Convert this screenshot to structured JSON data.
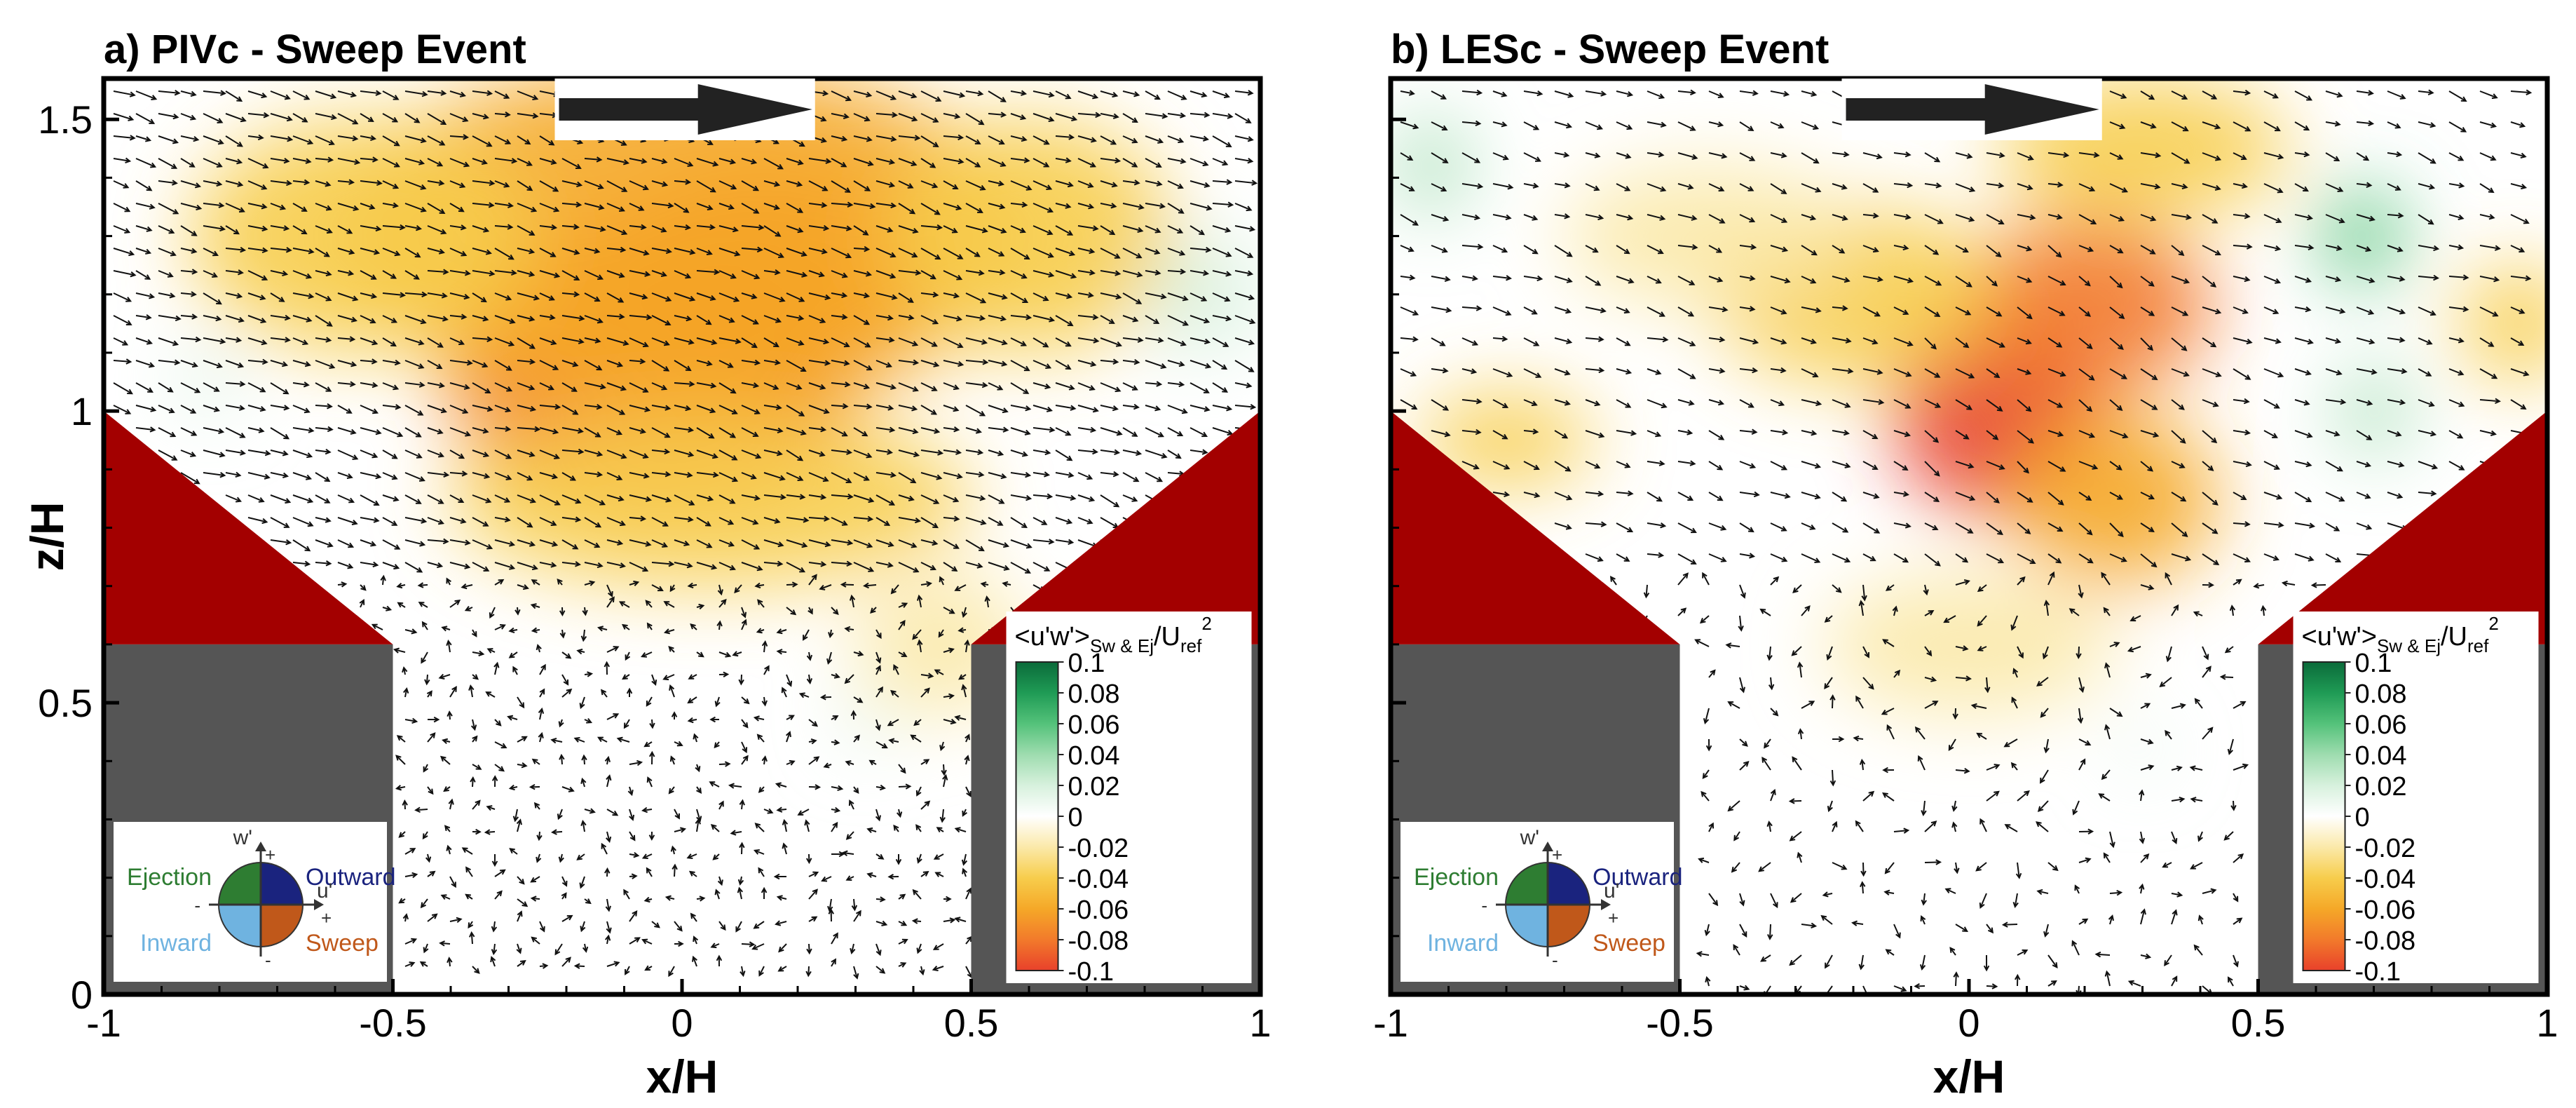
{
  "colors": {
    "roof": "#a30000",
    "building": "#555555",
    "frame": "#000000",
    "arrow": "#222222",
    "colormap": [
      "#e8412b",
      "#f27a2b",
      "#f5a828",
      "#f7cd4c",
      "#fbe9a9",
      "#ffffff",
      "#d7f1dd",
      "#9edcaf",
      "#54c27a",
      "#1f9b55",
      "#0b6b3a"
    ],
    "quadrants": {
      "ejection": "#2e7d32",
      "outward": "#1a237e",
      "inward": "#6fb3e0",
      "sweep": "#c0581a"
    }
  },
  "chart_data": [
    {
      "type": "heatmap",
      "title": "a) PIVc - Sweep Event",
      "xlabel": "x/H",
      "ylabel": "z/H",
      "xlim": [
        -1,
        1
      ],
      "ylim": [
        0,
        1.57
      ],
      "xticks": [
        "-1",
        "-0.5",
        "0",
        "0.5",
        "1"
      ],
      "yticks": [
        "0",
        "0.5",
        "1",
        "1.5"
      ],
      "field": "<u'w'> Sw & Ej / Uref^2",
      "colorbar_range": [
        -0.1,
        0.1
      ],
      "blobs": [
        {
          "x": -0.05,
          "z": 1.08,
          "value": -0.09,
          "rx": 0.36,
          "rz": 0.26
        },
        {
          "x": 0.15,
          "z": 1.22,
          "value": -0.08,
          "rx": 0.3,
          "rz": 0.2
        },
        {
          "x": 0.0,
          "z": 1.3,
          "value": -0.06,
          "rx": 0.6,
          "rz": 0.3
        },
        {
          "x": -0.55,
          "z": 1.3,
          "value": -0.035,
          "rx": 0.3,
          "rz": 0.2
        },
        {
          "x": 0.6,
          "z": 1.3,
          "value": -0.04,
          "rx": 0.25,
          "rz": 0.2
        },
        {
          "x": 0.05,
          "z": 0.85,
          "value": -0.05,
          "rx": 0.45,
          "rz": 0.15
        },
        {
          "x": 0.45,
          "z": 0.6,
          "value": -0.03,
          "rx": 0.15,
          "rz": 0.12
        },
        {
          "x": 0.9,
          "z": 1.2,
          "value": 0.02,
          "rx": 0.1,
          "rz": 0.1
        },
        {
          "x": -0.82,
          "z": 1.05,
          "value": 0.02,
          "rx": 0.05,
          "rz": 0.05
        },
        {
          "x": 0.32,
          "z": 0.47,
          "value": 0.02,
          "rx": 0.04,
          "rz": 0.04
        }
      ],
      "flow_direction": "+x",
      "geometry": {
        "left_building_x": [
          -1,
          -0.5
        ],
        "right_building_x": [
          0.5,
          1
        ],
        "building_top_z": 0.6,
        "roof_peak_z": 1.0
      }
    },
    {
      "type": "heatmap",
      "title": "b) LESc - Sweep Event",
      "xlabel": "x/H",
      "ylabel": "",
      "xlim": [
        -1,
        1
      ],
      "ylim": [
        0,
        1.57
      ],
      "xticks": [
        "-1",
        "-0.5",
        "0",
        "0.5",
        "1"
      ],
      "yticks": [],
      "field": "<u'w'> Sw & Ej / Uref^2",
      "colorbar_range": [
        -0.1,
        0.1
      ],
      "blobs": [
        {
          "x": 0.05,
          "z": 1.0,
          "value": -0.1,
          "rx": 0.18,
          "rz": 0.18
        },
        {
          "x": 0.2,
          "z": 1.18,
          "value": -0.08,
          "rx": 0.22,
          "rz": 0.15
        },
        {
          "x": 0.25,
          "z": 0.85,
          "value": -0.06,
          "rx": 0.18,
          "rz": 0.15
        },
        {
          "x": 0.3,
          "z": 1.45,
          "value": -0.05,
          "rx": 0.25,
          "rz": 0.12
        },
        {
          "x": -0.2,
          "z": 1.2,
          "value": -0.04,
          "rx": 0.25,
          "rz": 0.15
        },
        {
          "x": -0.45,
          "z": 1.3,
          "value": -0.03,
          "rx": 0.25,
          "rz": 0.12
        },
        {
          "x": -0.8,
          "z": 0.95,
          "value": -0.04,
          "rx": 0.15,
          "rz": 0.08
        },
        {
          "x": 0.95,
          "z": 1.15,
          "value": -0.04,
          "rx": 0.1,
          "rz": 0.1
        },
        {
          "x": 0.0,
          "z": 0.6,
          "value": -0.025,
          "rx": 0.25,
          "rz": 0.12
        },
        {
          "x": -0.93,
          "z": 1.42,
          "value": 0.03,
          "rx": 0.06,
          "rz": 0.08
        },
        {
          "x": 0.68,
          "z": 1.3,
          "value": 0.05,
          "rx": 0.07,
          "rz": 0.08
        },
        {
          "x": 0.7,
          "z": 1.0,
          "value": 0.04,
          "rx": 0.06,
          "rz": 0.07
        },
        {
          "x": 0.3,
          "z": 0.42,
          "value": 0.02,
          "rx": 0.03,
          "rz": 0.04
        }
      ],
      "flow_direction": "+x",
      "geometry": {
        "left_building_x": [
          -1,
          -0.5
        ],
        "right_building_x": [
          0.5,
          1
        ],
        "building_top_z": 0.6,
        "roof_peak_z": 1.0
      }
    }
  ],
  "colorbar": {
    "title_main": "<u'w'>",
    "title_sub": "Sw & Ej",
    "title_mid": "/U",
    "title_ref": "ref",
    "title_sup": "2",
    "labels": [
      "0.1",
      "0.08",
      "0.06",
      "0.04",
      "0.02",
      "0",
      "-0.02",
      "-0.04",
      "-0.06",
      "-0.08",
      "-0.1"
    ]
  },
  "quadrant_legend": {
    "ejection": "Ejection",
    "outward": "Outward",
    "inward": "Inward",
    "sweep": "Sweep",
    "w_axis": "w'",
    "u_axis": "u'",
    "plus": "+",
    "minus": "-"
  }
}
